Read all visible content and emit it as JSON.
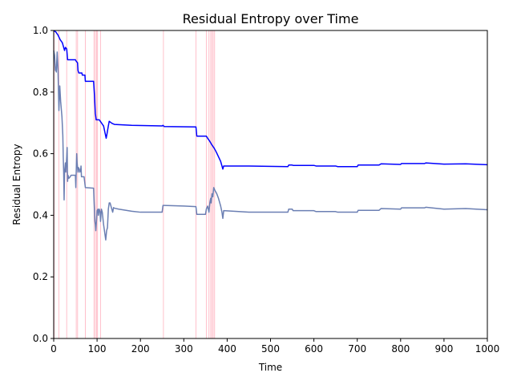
{
  "chart_data": {
    "type": "line",
    "title": "Residual Entropy over Time",
    "xlabel": "Time",
    "ylabel": "Residual Entropy",
    "xlim": [
      0,
      1000
    ],
    "ylim": [
      0,
      1.0
    ],
    "xticks": [
      0,
      100,
      200,
      300,
      400,
      500,
      600,
      700,
      800,
      900,
      1000
    ],
    "yticks": [
      0.0,
      0.2,
      0.4,
      0.6,
      0.8,
      1.0
    ],
    "grid": false,
    "legend": "none",
    "event_lines": {
      "color": "#ffc0cb",
      "x": [
        1,
        12,
        30,
        52,
        55,
        73,
        93,
        96,
        99,
        101,
        108,
        253,
        328,
        352,
        358,
        362,
        365,
        368,
        371
      ]
    },
    "series": [
      {
        "color": "#0000ff",
        "points": [
          [
            0,
            1.0
          ],
          [
            5,
            0.995
          ],
          [
            10,
            0.985
          ],
          [
            15,
            0.97
          ],
          [
            20,
            0.96
          ],
          [
            22,
            0.95
          ],
          [
            25,
            0.935
          ],
          [
            27,
            0.945
          ],
          [
            30,
            0.94
          ],
          [
            32,
            0.905
          ],
          [
            45,
            0.905
          ],
          [
            50,
            0.905
          ],
          [
            52,
            0.9
          ],
          [
            55,
            0.895
          ],
          [
            56,
            0.87
          ],
          [
            58,
            0.862
          ],
          [
            65,
            0.862
          ],
          [
            66,
            0.855
          ],
          [
            72,
            0.855
          ],
          [
            73,
            0.835
          ],
          [
            92,
            0.835
          ],
          [
            94,
            0.79
          ],
          [
            96,
            0.73
          ],
          [
            97,
            0.72
          ],
          [
            98,
            0.71
          ],
          [
            105,
            0.71
          ],
          [
            110,
            0.7
          ],
          [
            115,
            0.69
          ],
          [
            118,
            0.67
          ],
          [
            121,
            0.65
          ],
          [
            123,
            0.665
          ],
          [
            126,
            0.69
          ],
          [
            128,
            0.705
          ],
          [
            133,
            0.7
          ],
          [
            135,
            0.698
          ],
          [
            140,
            0.695
          ],
          [
            180,
            0.692
          ],
          [
            250,
            0.69
          ],
          [
            252,
            0.692
          ],
          [
            255,
            0.688
          ],
          [
            328,
            0.687
          ],
          [
            330,
            0.657
          ],
          [
            352,
            0.657
          ],
          [
            355,
            0.65
          ],
          [
            360,
            0.64
          ],
          [
            365,
            0.628
          ],
          [
            370,
            0.618
          ],
          [
            375,
            0.605
          ],
          [
            380,
            0.59
          ],
          [
            385,
            0.575
          ],
          [
            388,
            0.56
          ],
          [
            390,
            0.55
          ],
          [
            392,
            0.56
          ],
          [
            450,
            0.56
          ],
          [
            540,
            0.558
          ],
          [
            542,
            0.563
          ],
          [
            550,
            0.563
          ],
          [
            552,
            0.562
          ],
          [
            600,
            0.562
          ],
          [
            605,
            0.56
          ],
          [
            650,
            0.56
          ],
          [
            655,
            0.558
          ],
          [
            700,
            0.558
          ],
          [
            702,
            0.563
          ],
          [
            750,
            0.563
          ],
          [
            755,
            0.567
          ],
          [
            800,
            0.565
          ],
          [
            802,
            0.568
          ],
          [
            855,
            0.568
          ],
          [
            858,
            0.57
          ],
          [
            900,
            0.566
          ],
          [
            950,
            0.567
          ],
          [
            1000,
            0.564
          ]
        ]
      },
      {
        "color": "#6b7fb3",
        "points": [
          [
            0,
            0.935
          ],
          [
            2,
            0.92
          ],
          [
            4,
            0.87
          ],
          [
            5,
            0.88
          ],
          [
            6,
            0.865
          ],
          [
            8,
            0.93
          ],
          [
            10,
            0.87
          ],
          [
            12,
            0.74
          ],
          [
            14,
            0.82
          ],
          [
            16,
            0.77
          ],
          [
            19,
            0.72
          ],
          [
            21,
            0.66
          ],
          [
            22,
            0.59
          ],
          [
            23,
            0.54
          ],
          [
            24,
            0.45
          ],
          [
            25,
            0.54
          ],
          [
            27,
            0.57
          ],
          [
            28,
            0.54
          ],
          [
            30,
            0.59
          ],
          [
            31,
            0.62
          ],
          [
            32,
            0.51
          ],
          [
            33,
            0.53
          ],
          [
            35,
            0.52
          ],
          [
            38,
            0.525
          ],
          [
            40,
            0.53
          ],
          [
            45,
            0.53
          ],
          [
            48,
            0.53
          ],
          [
            50,
            0.53
          ],
          [
            51,
            0.49
          ],
          [
            53,
            0.6
          ],
          [
            54,
            0.57
          ],
          [
            56,
            0.54
          ],
          [
            57,
            0.555
          ],
          [
            59,
            0.55
          ],
          [
            60,
            0.54
          ],
          [
            62,
            0.545
          ],
          [
            63,
            0.56
          ],
          [
            64,
            0.525
          ],
          [
            70,
            0.525
          ],
          [
            73,
            0.49
          ],
          [
            92,
            0.488
          ],
          [
            93,
            0.45
          ],
          [
            95,
            0.38
          ],
          [
            96,
            0.37
          ],
          [
            97,
            0.35
          ],
          [
            98,
            0.37
          ],
          [
            99,
            0.39
          ],
          [
            100,
            0.415
          ],
          [
            102,
            0.42
          ],
          [
            103,
            0.4
          ],
          [
            105,
            0.42
          ],
          [
            107,
            0.41
          ],
          [
            108,
            0.38
          ],
          [
            110,
            0.42
          ],
          [
            112,
            0.41
          ],
          [
            115,
            0.37
          ],
          [
            118,
            0.34
          ],
          [
            120,
            0.32
          ],
          [
            122,
            0.35
          ],
          [
            124,
            0.36
          ],
          [
            126,
            0.42
          ],
          [
            128,
            0.44
          ],
          [
            130,
            0.44
          ],
          [
            132,
            0.43
          ],
          [
            134,
            0.42
          ],
          [
            136,
            0.41
          ],
          [
            138,
            0.425
          ],
          [
            140,
            0.423
          ],
          [
            150,
            0.42
          ],
          [
            180,
            0.413
          ],
          [
            200,
            0.41
          ],
          [
            250,
            0.41
          ],
          [
            252,
            0.432
          ],
          [
            255,
            0.432
          ],
          [
            300,
            0.43
          ],
          [
            328,
            0.428
          ],
          [
            330,
            0.403
          ],
          [
            350,
            0.403
          ],
          [
            352,
            0.42
          ],
          [
            355,
            0.43
          ],
          [
            358,
            0.41
          ],
          [
            360,
            0.44
          ],
          [
            362,
            0.455
          ],
          [
            363,
            0.44
          ],
          [
            365,
            0.47
          ],
          [
            367,
            0.46
          ],
          [
            369,
            0.49
          ],
          [
            372,
            0.48
          ],
          [
            376,
            0.47
          ],
          [
            380,
            0.455
          ],
          [
            385,
            0.43
          ],
          [
            388,
            0.41
          ],
          [
            390,
            0.39
          ],
          [
            392,
            0.415
          ],
          [
            450,
            0.41
          ],
          [
            540,
            0.41
          ],
          [
            542,
            0.42
          ],
          [
            550,
            0.42
          ],
          [
            552,
            0.415
          ],
          [
            600,
            0.415
          ],
          [
            605,
            0.412
          ],
          [
            650,
            0.412
          ],
          [
            655,
            0.41
          ],
          [
            700,
            0.41
          ],
          [
            702,
            0.416
          ],
          [
            750,
            0.416
          ],
          [
            755,
            0.422
          ],
          [
            800,
            0.42
          ],
          [
            802,
            0.424
          ],
          [
            855,
            0.424
          ],
          [
            858,
            0.426
          ],
          [
            900,
            0.42
          ],
          [
            950,
            0.422
          ],
          [
            1000,
            0.418
          ]
        ]
      }
    ]
  }
}
